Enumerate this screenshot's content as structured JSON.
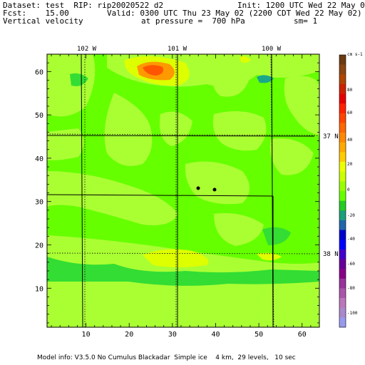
{
  "header": {
    "dataset": "Dataset: test  RIP: rip20020522 d2",
    "init": "Init: 1200 UTC Wed 22 May 02",
    "fcst": "Fcst:    15.00",
    "valid": "Valid: 0300 UTC Thu 23 May 02 (2200 CDT Wed 22 May 02)",
    "field": "Vertical velocity",
    "pressure": "at pressure =  700 hPa",
    "smooth": "sm= 1"
  },
  "map": {
    "x_ticks": [
      "10",
      "20",
      "30",
      "40",
      "50",
      "60"
    ],
    "y_ticks": [
      "10",
      "20",
      "30",
      "40",
      "50",
      "60"
    ],
    "x_range": [
      1,
      64
    ],
    "y_range": [
      1,
      64
    ],
    "lon_labels": [
      "102 W",
      "101 W",
      "100 W"
    ],
    "lat_labels": [
      "37 N",
      "38 N"
    ],
    "colors": {
      "background": "#66ff00",
      "light": "#aaff33",
      "yellow": "#ddff00",
      "orange": "#ff9900",
      "red": "#ff5500",
      "teal": "#1aa88a",
      "green": "#33dd33"
    }
  },
  "colorbar": {
    "units": "cm s-1",
    "labels": [
      "80",
      "60",
      "40",
      "20",
      "0",
      "-20",
      "-40",
      "-60",
      "-80",
      "-100"
    ],
    "colors": [
      "#6b3a10",
      "#8a4510",
      "#b04500",
      "#cc2200",
      "#e60000",
      "#ff2200",
      "#ff4400",
      "#ff6600",
      "#ff8800",
      "#ffaa00",
      "#ffcc00",
      "#eeff00",
      "#ccff00",
      "#99ff00",
      "#66ff00",
      "#22cc22",
      "#1aa07a",
      "#2266aa",
      "#0000cc",
      "#0000ff",
      "#4400cc",
      "#660099",
      "#880088",
      "#993399",
      "#aa55aa",
      "#bb77bb",
      "#aa88cc",
      "#9999ee"
    ]
  },
  "footer": "Model info: V3.5.0 No Cumulus Blackadar  Simple ice    4 km,  29 levels,   10 sec"
}
